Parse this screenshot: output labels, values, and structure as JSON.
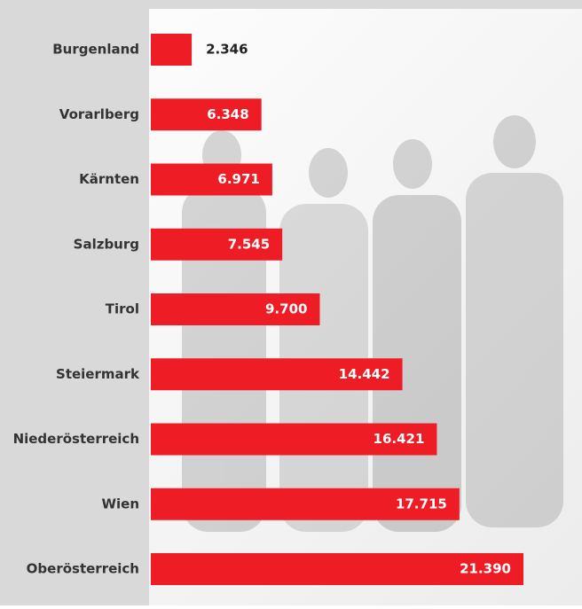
{
  "chart_data": {
    "type": "bar",
    "orientation": "horizontal",
    "categories": [
      "Burgenland",
      "Vorarlberg",
      "Kärnten",
      "Salzburg",
      "Tirol",
      "Steiermark",
      "Niederösterreich",
      "Wien",
      "Oberösterreich"
    ],
    "values": [
      2346,
      6348,
      6971,
      7545,
      9700,
      14442,
      16421,
      17715,
      21390
    ],
    "value_labels": [
      "2.346",
      "6.348",
      "6.971",
      "7.545",
      "9.700",
      "14.442",
      "16.421",
      "17.715",
      "21.390"
    ],
    "color": "#ee1c25"
  }
}
